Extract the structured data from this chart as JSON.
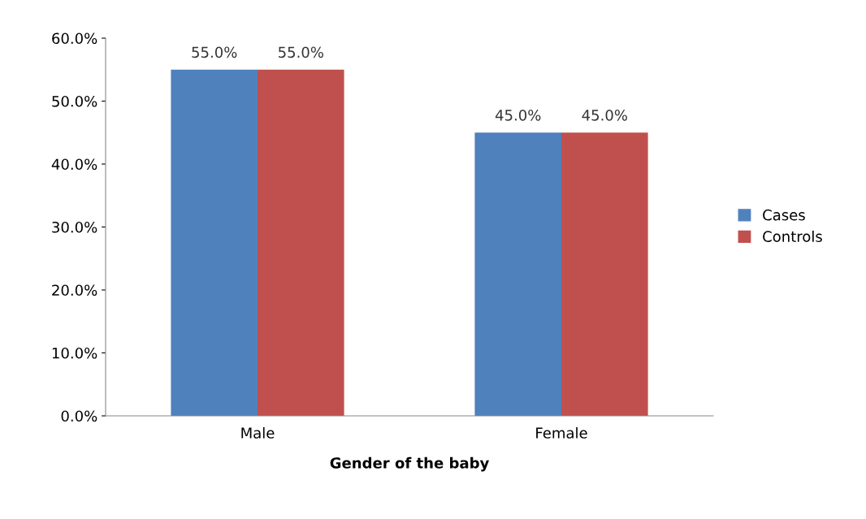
{
  "chart_data": {
    "type": "bar",
    "xlabel": "Gender of the baby",
    "categories": [
      "Male",
      "Female"
    ],
    "series": [
      {
        "name": "Cases",
        "color": "#4f81bd",
        "values": [
          55.0,
          45.0
        ],
        "value_labels": [
          "55.0%",
          "45.0%"
        ]
      },
      {
        "name": "Controls",
        "color": "#c0504d",
        "values": [
          55.0,
          45.0
        ],
        "value_labels": [
          "55.0%",
          "45.0%"
        ]
      }
    ],
    "ylim": [
      0,
      60
    ],
    "yticks": [
      {
        "value": 0,
        "label": "0.0%"
      },
      {
        "value": 10,
        "label": "10.0%"
      },
      {
        "value": 20,
        "label": "20.0%"
      },
      {
        "value": 30,
        "label": "30.0%"
      },
      {
        "value": 40,
        "label": "40.0%"
      },
      {
        "value": 50,
        "label": "50.0%"
      },
      {
        "value": 60,
        "label": "60.0%"
      }
    ],
    "grid": false,
    "legend": "right"
  }
}
